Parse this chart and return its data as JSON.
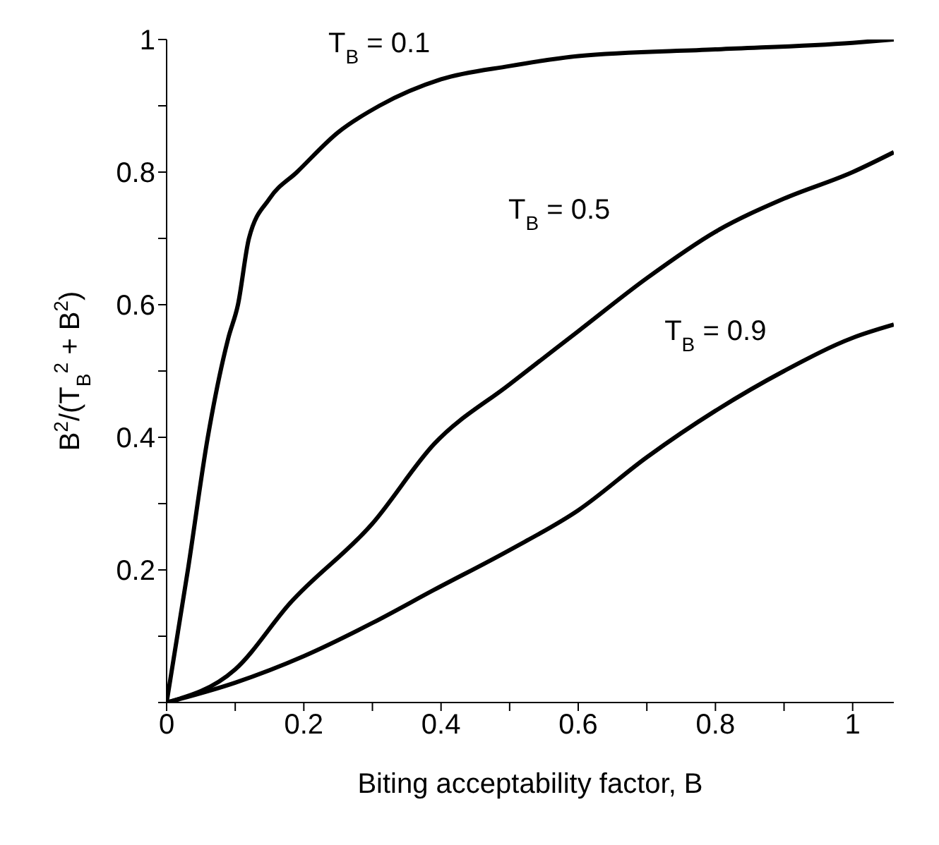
{
  "chart_data": {
    "type": "line",
    "xlabel": "Biting acceptability factor, B",
    "ylabel": "B$^{2}$/(T$_{B}$$^{2}$ + B$^{2}$)",
    "xlim": [
      0,
      1.06
    ],
    "ylim": [
      0,
      1
    ],
    "xticks": [
      0,
      {
        "value": 0.1,
        "label": null
      },
      0.2,
      {
        "value": 0.3,
        "label": null
      },
      0.4,
      {
        "value": 0.5,
        "label": null
      },
      0.6,
      {
        "value": 0.7,
        "label": null
      },
      0.8,
      {
        "value": 0.9,
        "label": null
      },
      1
    ],
    "yticks": [
      {
        "value": 0,
        "label": null
      },
      {
        "value": 0.1,
        "label": null
      },
      0.2,
      {
        "value": 0.3,
        "label": null
      },
      0.4,
      {
        "value": 0.5,
        "label": null
      },
      0.6,
      {
        "value": 0.7,
        "label": null
      },
      0.8,
      {
        "value": 0.9,
        "label": null
      },
      1
    ],
    "grid": false,
    "marker": "none",
    "line_style": "solid",
    "series": [
      {
        "color": "#000000",
        "x": [
          0,
          0.031,
          0.06,
          0.09,
          0.104,
          0.12,
          0.15,
          0.19,
          0.25,
          0.31,
          0.4,
          0.5,
          0.6,
          0.8,
          1.0,
          1.06
        ],
        "values": [
          0,
          0.2,
          0.4,
          0.55,
          0.6,
          0.7,
          0.76,
          0.8,
          0.86,
          0.9,
          0.94,
          0.96,
          0.975,
          0.985,
          0.995,
          1.0
        ]
      },
      {
        "color": "#000000",
        "x": [
          0,
          0.1,
          0.18,
          0.3,
          0.39,
          0.5,
          0.6,
          0.7,
          0.8,
          0.9,
          1.0,
          1.06
        ],
        "values": [
          0,
          0.05,
          0.15,
          0.27,
          0.39,
          0.48,
          0.56,
          0.64,
          0.71,
          0.76,
          0.8,
          0.83
        ]
      },
      {
        "color": "#000000",
        "x": [
          0,
          0.1,
          0.2,
          0.3,
          0.39,
          0.5,
          0.6,
          0.7,
          0.8,
          0.9,
          1.0,
          1.06
        ],
        "values": [
          0,
          0.03,
          0.07,
          0.12,
          0.17,
          0.23,
          0.29,
          0.37,
          0.44,
          0.5,
          0.55,
          0.57
        ]
      }
    ],
    "annotations": [
      {
        "text": "T$_{B}$ = 0.1",
        "x": 0.31,
        "y": 0.9
      },
      {
        "text": "T$_{B}$ = 0.5",
        "x": 0.7,
        "y": 0.64
      },
      {
        "text": "T$_{B}$ = 0.9",
        "x": 0.8,
        "y": 0.44
      }
    ]
  }
}
